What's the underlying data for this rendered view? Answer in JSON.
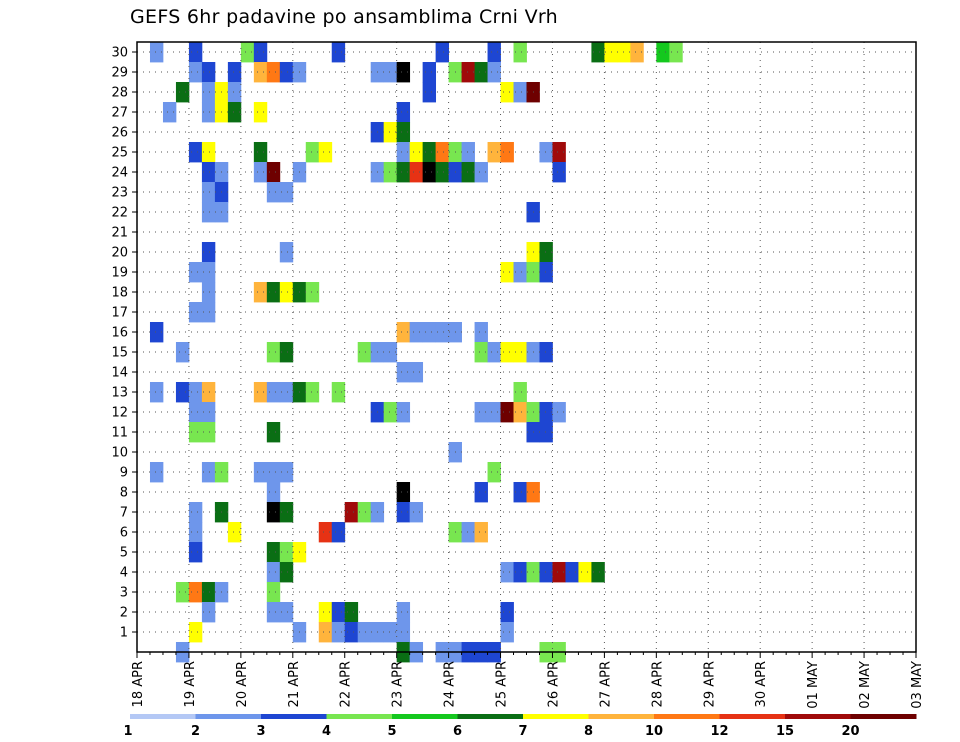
{
  "chart_data": {
    "type": "heatmap",
    "title": "GEFS 6hr padavine po ansamblima Crni Vrh",
    "x_tick_labels": [
      "18 APR",
      "19 APR",
      "20 APR",
      "21 APR",
      "22 APR",
      "23 APR",
      "24 APR",
      "25 APR",
      "26 APR",
      "27 APR",
      "28 APR",
      "29 APR",
      "30 APR",
      "01 MAY",
      "02 MAY",
      "03 MAY"
    ],
    "y_tick_labels": [
      "1",
      "2",
      "3",
      "4",
      "5",
      "6",
      "7",
      "8",
      "9",
      "10",
      "11",
      "12",
      "13",
      "14",
      "15",
      "16",
      "17",
      "18",
      "19",
      "20",
      "21",
      "22",
      "23",
      "24",
      "25",
      "26",
      "27",
      "28",
      "29",
      "30"
    ],
    "steps_per_day": 4,
    "grid": true,
    "colorbar": {
      "position": "bottom",
      "levels": [
        "1",
        "2",
        "3",
        "4",
        "5",
        "6",
        "7",
        "8",
        "10",
        "12",
        "15",
        "20"
      ],
      "colors": [
        "#b4c8f5",
        "#6e96eb",
        "#1e46d2",
        "#78e650",
        "#14c81e",
        "#0a6e14",
        "#ffff00",
        "#ffb43c",
        "#ff7814",
        "#e63214",
        "#a00a0a",
        "#6e0000"
      ]
    },
    "cells": [
      [
        1,
        30,
        1
      ],
      [
        4,
        30,
        2
      ],
      [
        8,
        30,
        3
      ],
      [
        9,
        30,
        2
      ],
      [
        15,
        30,
        2
      ],
      [
        23,
        30,
        2
      ],
      [
        27,
        30,
        2
      ],
      [
        29,
        30,
        3
      ],
      [
        35,
        30,
        5
      ],
      [
        36,
        30,
        6
      ],
      [
        37,
        30,
        6
      ],
      [
        38,
        30,
        7
      ],
      [
        40,
        30,
        4
      ],
      [
        41,
        30,
        3
      ],
      [
        4,
        29,
        1
      ],
      [
        5,
        29,
        2
      ],
      [
        7,
        29,
        2
      ],
      [
        9,
        29,
        7
      ],
      [
        10,
        29,
        8
      ],
      [
        11,
        29,
        2
      ],
      [
        12,
        29,
        1
      ],
      [
        18,
        29,
        1
      ],
      [
        19,
        29,
        1
      ],
      [
        20,
        29,
        13
      ],
      [
        22,
        29,
        2
      ],
      [
        24,
        29,
        3
      ],
      [
        25,
        29,
        10
      ],
      [
        26,
        29,
        5
      ],
      [
        27,
        29,
        1
      ],
      [
        3,
        28,
        5
      ],
      [
        5,
        28,
        1
      ],
      [
        6,
        28,
        6
      ],
      [
        7,
        28,
        1
      ],
      [
        22,
        28,
        2
      ],
      [
        28,
        28,
        6
      ],
      [
        29,
        28,
        1
      ],
      [
        30,
        28,
        11
      ],
      [
        2,
        27,
        1
      ],
      [
        5,
        27,
        1
      ],
      [
        6,
        27,
        6
      ],
      [
        7,
        27,
        5
      ],
      [
        9,
        27,
        6
      ],
      [
        20,
        27,
        2
      ],
      [
        18,
        26,
        2
      ],
      [
        19,
        26,
        6
      ],
      [
        20,
        26,
        5
      ],
      [
        4,
        25,
        2
      ],
      [
        5,
        25,
        6
      ],
      [
        9,
        25,
        5
      ],
      [
        13,
        25,
        3
      ],
      [
        14,
        25,
        6
      ],
      [
        20,
        25,
        1
      ],
      [
        21,
        25,
        6
      ],
      [
        22,
        25,
        5
      ],
      [
        23,
        25,
        8
      ],
      [
        24,
        25,
        3
      ],
      [
        25,
        25,
        1
      ],
      [
        27,
        25,
        7
      ],
      [
        28,
        25,
        8
      ],
      [
        31,
        25,
        1
      ],
      [
        32,
        25,
        10
      ],
      [
        5,
        24,
        2
      ],
      [
        6,
        24,
        1
      ],
      [
        9,
        24,
        1
      ],
      [
        10,
        24,
        11
      ],
      [
        12,
        24,
        1
      ],
      [
        18,
        24,
        1
      ],
      [
        19,
        24,
        3
      ],
      [
        20,
        24,
        5
      ],
      [
        21,
        24,
        9
      ],
      [
        22,
        24,
        13
      ],
      [
        23,
        24,
        5
      ],
      [
        24,
        24,
        2
      ],
      [
        25,
        24,
        5
      ],
      [
        26,
        24,
        1
      ],
      [
        32,
        24,
        2
      ],
      [
        5,
        23,
        1
      ],
      [
        6,
        23,
        2
      ],
      [
        10,
        23,
        1
      ],
      [
        11,
        23,
        1
      ],
      [
        5,
        22,
        1
      ],
      [
        6,
        22,
        1
      ],
      [
        30,
        22,
        2
      ],
      [
        5,
        20,
        2
      ],
      [
        11,
        20,
        1
      ],
      [
        30,
        20,
        6
      ],
      [
        31,
        20,
        5
      ],
      [
        4,
        19,
        1
      ],
      [
        5,
        19,
        1
      ],
      [
        28,
        19,
        6
      ],
      [
        29,
        19,
        1
      ],
      [
        30,
        19,
        3
      ],
      [
        31,
        19,
        2
      ],
      [
        5,
        18,
        1
      ],
      [
        9,
        18,
        7
      ],
      [
        10,
        18,
        5
      ],
      [
        11,
        18,
        6
      ],
      [
        12,
        18,
        5
      ],
      [
        13,
        18,
        3
      ],
      [
        4,
        17,
        1
      ],
      [
        5,
        17,
        1
      ],
      [
        1,
        16,
        2
      ],
      [
        20,
        16,
        7
      ],
      [
        21,
        16,
        1
      ],
      [
        22,
        16,
        1
      ],
      [
        23,
        16,
        1
      ],
      [
        24,
        16,
        1
      ],
      [
        26,
        16,
        1
      ],
      [
        3,
        15,
        1
      ],
      [
        10,
        15,
        3
      ],
      [
        11,
        15,
        5
      ],
      [
        17,
        15,
        3
      ],
      [
        18,
        15,
        1
      ],
      [
        19,
        15,
        1
      ],
      [
        26,
        15,
        3
      ],
      [
        27,
        15,
        1
      ],
      [
        28,
        15,
        6
      ],
      [
        29,
        15,
        6
      ],
      [
        30,
        15,
        1
      ],
      [
        31,
        15,
        2
      ],
      [
        20,
        14,
        1
      ],
      [
        21,
        14,
        1
      ],
      [
        1,
        13,
        1
      ],
      [
        3,
        13,
        2
      ],
      [
        4,
        13,
        1
      ],
      [
        5,
        13,
        7
      ],
      [
        9,
        13,
        7
      ],
      [
        10,
        13,
        1
      ],
      [
        11,
        13,
        1
      ],
      [
        12,
        13,
        5
      ],
      [
        13,
        13,
        3
      ],
      [
        15,
        13,
        3
      ],
      [
        29,
        13,
        3
      ],
      [
        4,
        12,
        1
      ],
      [
        5,
        12,
        1
      ],
      [
        18,
        12,
        2
      ],
      [
        19,
        12,
        3
      ],
      [
        20,
        12,
        1
      ],
      [
        26,
        12,
        1
      ],
      [
        27,
        12,
        1
      ],
      [
        28,
        12,
        11
      ],
      [
        29,
        12,
        7
      ],
      [
        30,
        12,
        3
      ],
      [
        31,
        12,
        2
      ],
      [
        32,
        12,
        1
      ],
      [
        4,
        11,
        3
      ],
      [
        5,
        11,
        3
      ],
      [
        10,
        11,
        5
      ],
      [
        30,
        11,
        2
      ],
      [
        31,
        11,
        2
      ],
      [
        24,
        10,
        1
      ],
      [
        1,
        9,
        1
      ],
      [
        5,
        9,
        1
      ],
      [
        6,
        9,
        3
      ],
      [
        9,
        9,
        1
      ],
      [
        10,
        9,
        1
      ],
      [
        11,
        9,
        1
      ],
      [
        27,
        9,
        3
      ],
      [
        10,
        8,
        1
      ],
      [
        20,
        8,
        14
      ],
      [
        26,
        8,
        2
      ],
      [
        29,
        8,
        2
      ],
      [
        30,
        8,
        8
      ],
      [
        4,
        7,
        1
      ],
      [
        6,
        7,
        5
      ],
      [
        10,
        7,
        13
      ],
      [
        11,
        7,
        5
      ],
      [
        16,
        7,
        10
      ],
      [
        17,
        7,
        3
      ],
      [
        18,
        7,
        1
      ],
      [
        20,
        7,
        2
      ],
      [
        21,
        7,
        1
      ],
      [
        4,
        6,
        1
      ],
      [
        7,
        6,
        6
      ],
      [
        14,
        6,
        9
      ],
      [
        15,
        6,
        2
      ],
      [
        24,
        6,
        3
      ],
      [
        25,
        6,
        1
      ],
      [
        26,
        6,
        7
      ],
      [
        4,
        5,
        2
      ],
      [
        10,
        5,
        5
      ],
      [
        11,
        5,
        3
      ],
      [
        12,
        5,
        6
      ],
      [
        10,
        4,
        1
      ],
      [
        11,
        4,
        5
      ],
      [
        28,
        4,
        1
      ],
      [
        29,
        4,
        2
      ],
      [
        30,
        4,
        3
      ],
      [
        31,
        4,
        2
      ],
      [
        32,
        4,
        10
      ],
      [
        33,
        4,
        2
      ],
      [
        34,
        4,
        6
      ],
      [
        35,
        4,
        5
      ],
      [
        3,
        3,
        3
      ],
      [
        4,
        3,
        8
      ],
      [
        5,
        3,
        5
      ],
      [
        6,
        3,
        1
      ],
      [
        10,
        3,
        3
      ],
      [
        5,
        2,
        1
      ],
      [
        10,
        2,
        1
      ],
      [
        11,
        2,
        1
      ],
      [
        14,
        2,
        6
      ],
      [
        15,
        2,
        2
      ],
      [
        16,
        2,
        5
      ],
      [
        20,
        2,
        1
      ],
      [
        28,
        2,
        2
      ],
      [
        4,
        1,
        6
      ],
      [
        12,
        1,
        1
      ],
      [
        14,
        1,
        7
      ],
      [
        15,
        1,
        1
      ],
      [
        16,
        1,
        2
      ],
      [
        17,
        1,
        1
      ],
      [
        18,
        1,
        1
      ],
      [
        19,
        1,
        1
      ],
      [
        20,
        1,
        1
      ],
      [
        28,
        1,
        1
      ],
      [
        3,
        0,
        1
      ],
      [
        20,
        0,
        5
      ],
      [
        21,
        0,
        1
      ],
      [
        23,
        0,
        1
      ],
      [
        24,
        0,
        1
      ],
      [
        25,
        0,
        2
      ],
      [
        26,
        0,
        2
      ],
      [
        27,
        0,
        2
      ],
      [
        31,
        0,
        3
      ],
      [
        32,
        0,
        3
      ]
    ]
  }
}
